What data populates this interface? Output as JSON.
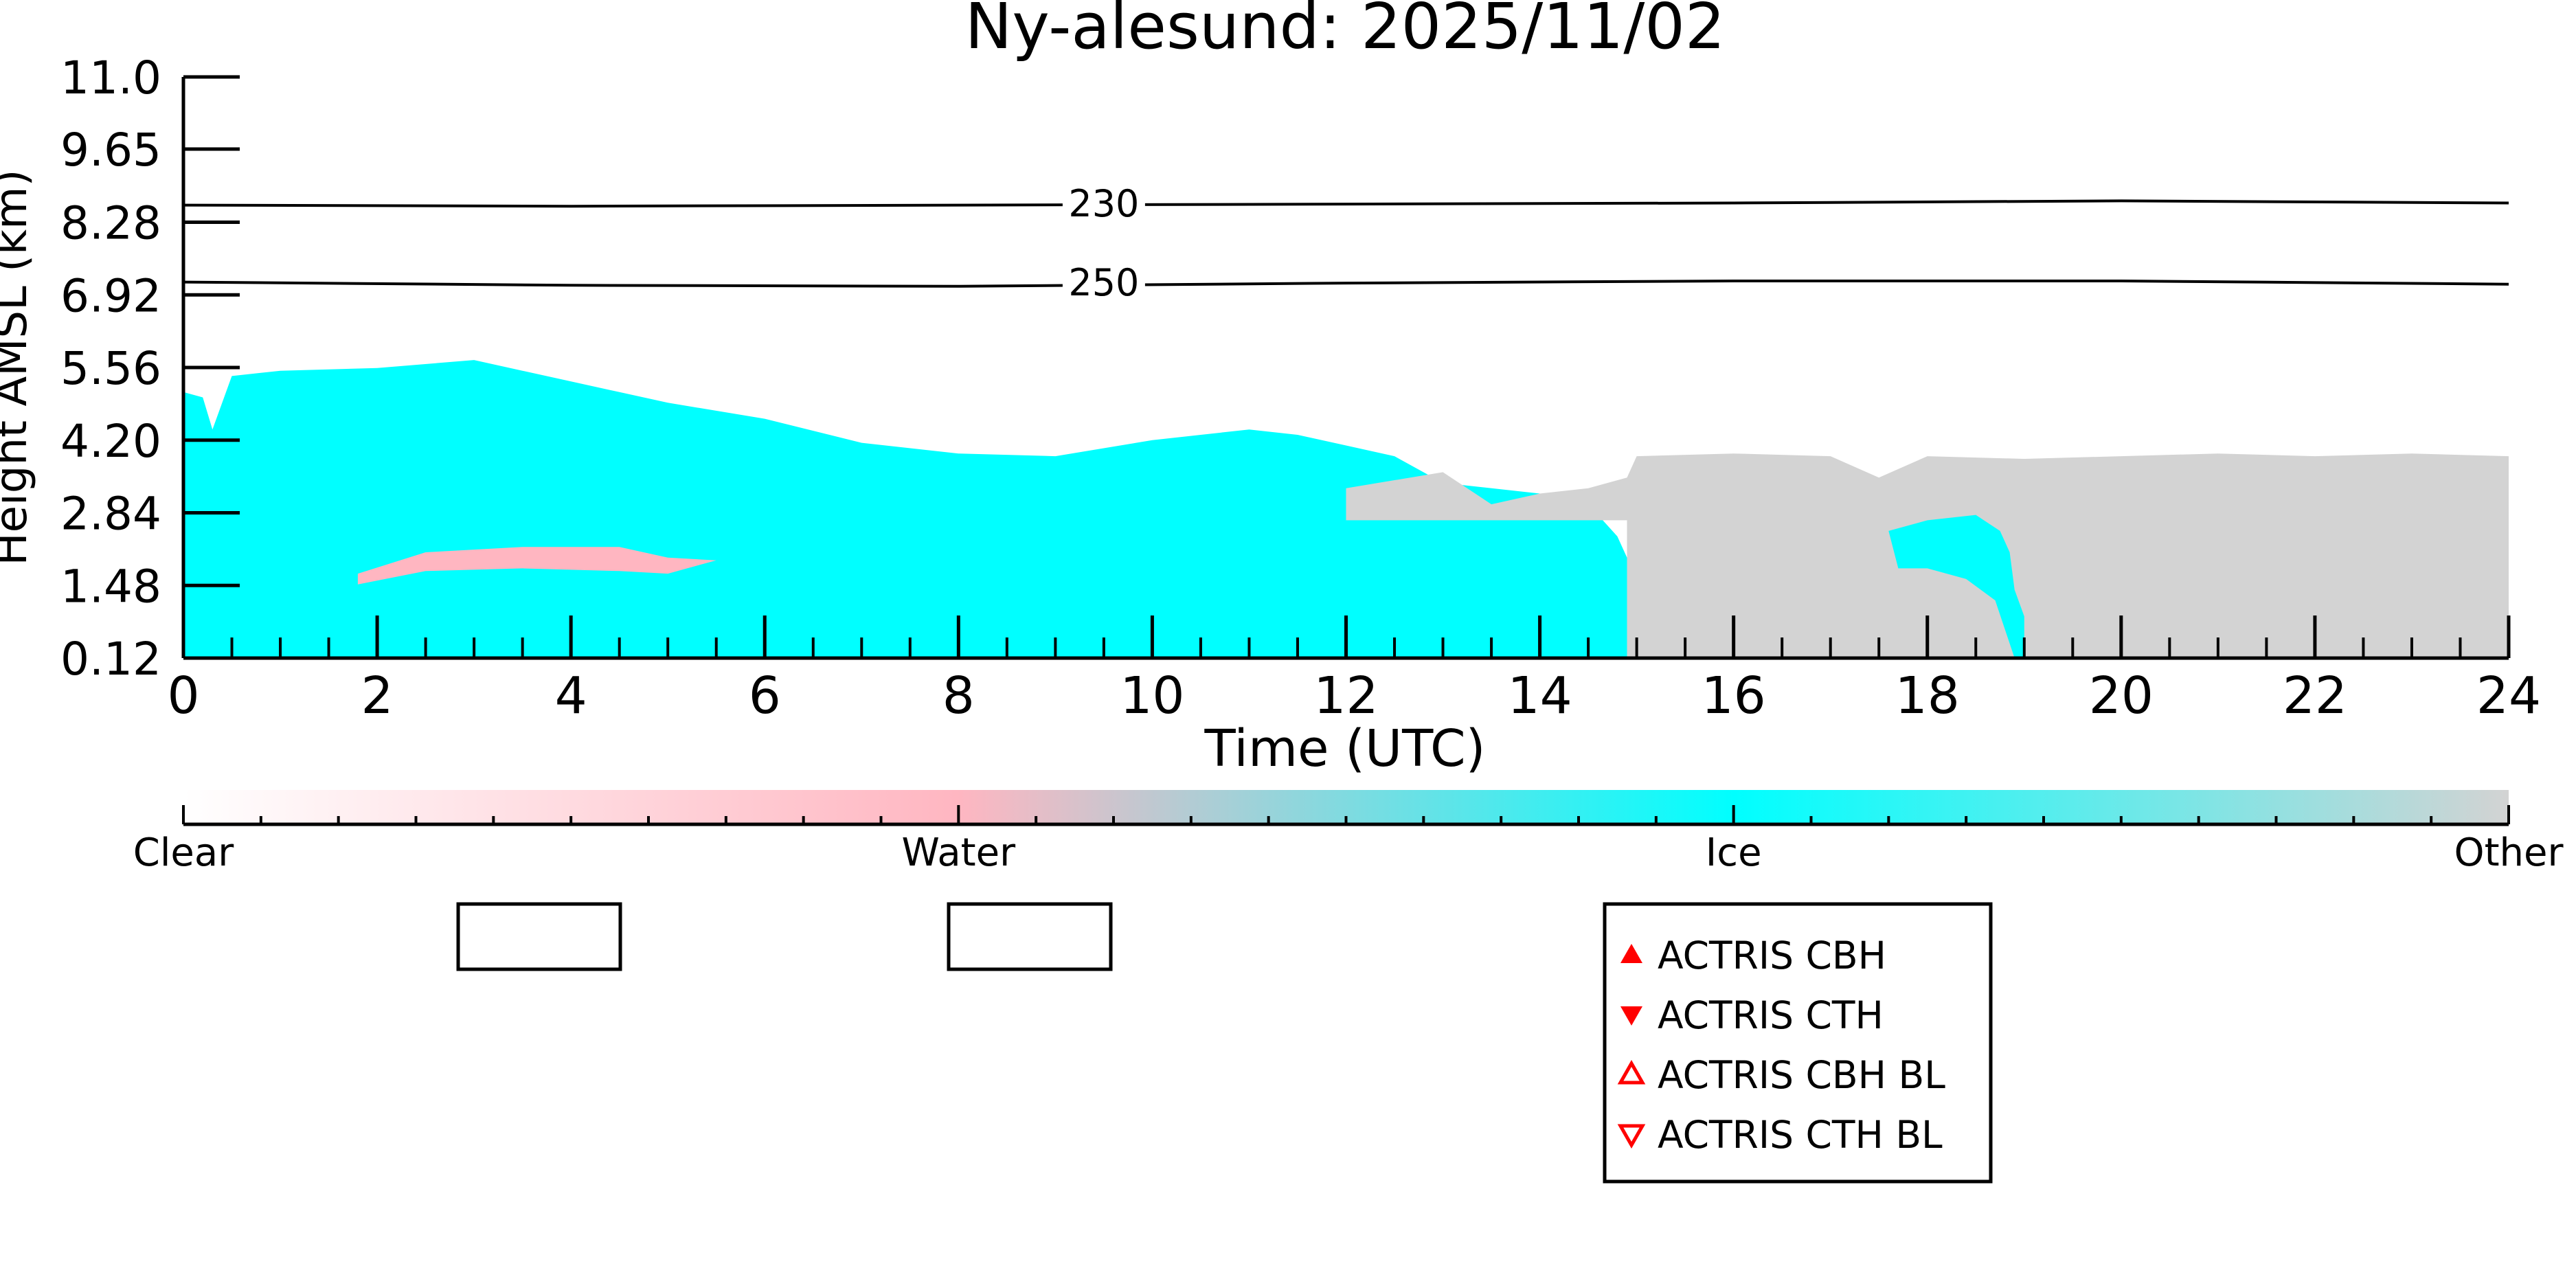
{
  "chart_data": {
    "type": "heatmap",
    "title": "Ny-alesund: 2025/11/02",
    "xlabel": "Time (UTC)",
    "ylabel": "Height AMSL (km)",
    "xlim": [
      0,
      24
    ],
    "ylim": [
      0.12,
      11.0
    ],
    "x_ticks": [
      "0",
      "2",
      "4",
      "6",
      "8",
      "10",
      "12",
      "14",
      "16",
      "18",
      "20",
      "22",
      "24"
    ],
    "y_ticks": [
      "0.12",
      "1.48",
      "2.84",
      "4.20",
      "5.56",
      "6.92",
      "8.28",
      "9.65",
      "11.0"
    ],
    "grid": false,
    "colorbar": {
      "labels": [
        "Clear",
        "Water",
        "Ice",
        "Other"
      ],
      "colors": [
        "#ffffff",
        "#ffb6c1",
        "#00ffff",
        "#d3d3d3"
      ]
    },
    "contours": [
      {
        "label": "230",
        "x": [
          0,
          4,
          8,
          12,
          16,
          20,
          24
        ],
        "y": [
          8.6,
          8.58,
          8.6,
          8.62,
          8.64,
          8.68,
          8.64
        ]
      },
      {
        "label": "250",
        "x": [
          0,
          4,
          8,
          12,
          16,
          20,
          24
        ],
        "y": [
          7.16,
          7.1,
          7.08,
          7.14,
          7.18,
          7.18,
          7.12
        ]
      }
    ],
    "regions": [
      {
        "class": "Ice",
        "color": "#00ffff",
        "x": [
          0,
          0.2,
          0.3,
          0.5,
          1.0,
          2.0,
          3.0,
          3.5,
          4.0,
          4.5,
          5.0,
          6.0,
          7.0,
          8.0,
          9.0,
          10.0,
          10.5,
          11.0,
          11.5,
          12.0,
          12.5,
          13.0,
          14.0,
          14.5,
          14.8,
          14.9,
          14.9
        ],
        "y": [
          5.1,
          5.0,
          4.4,
          5.4,
          5.5,
          5.55,
          5.7,
          5.5,
          5.3,
          5.1,
          4.9,
          4.6,
          4.15,
          3.95,
          3.9,
          4.2,
          4.3,
          4.4,
          4.3,
          4.1,
          3.9,
          3.4,
          3.2,
          3.0,
          2.4,
          2.0,
          0.12
        ]
      },
      {
        "class": "Water",
        "color": "#ffb6c1",
        "x": [
          1.8,
          2.5,
          3.5,
          4.5,
          5.0,
          5.5,
          5.0,
          4.5,
          3.5,
          2.5,
          1.8
        ],
        "y": [
          1.7,
          2.1,
          2.2,
          2.2,
          2.0,
          1.95,
          1.7,
          1.75,
          1.8,
          1.75,
          1.5
        ]
      },
      {
        "class": "Other",
        "color": "#d3d3d3",
        "x": [
          14.9,
          15.0,
          16.0,
          17.0,
          17.5,
          18.0,
          19.0,
          20.0,
          21.0,
          22.0,
          23.0,
          24.0,
          24.0
        ],
        "y": [
          3.5,
          3.9,
          3.95,
          3.9,
          3.5,
          3.9,
          3.85,
          3.9,
          3.95,
          3.9,
          3.95,
          3.9,
          0.12
        ]
      },
      {
        "class": "Other",
        "color": "#d3d3d3",
        "x": [
          12.0,
          13.0,
          13.5,
          14.0,
          14.5,
          14.9,
          14.9,
          12.0
        ],
        "y": [
          3.3,
          3.6,
          3.0,
          3.2,
          3.3,
          3.5,
          2.7,
          2.7
        ]
      },
      {
        "class": "Ice",
        "color": "#00ffff",
        "x": [
          17.6,
          18.0,
          18.5,
          18.75,
          18.85,
          18.9,
          19.0,
          19.0,
          18.9,
          18.7,
          18.4,
          18.0,
          17.7
        ],
        "y": [
          2.5,
          2.7,
          2.8,
          2.5,
          2.1,
          1.4,
          0.9,
          0.12,
          0.12,
          1.2,
          1.6,
          1.8,
          1.8
        ]
      }
    ],
    "legend": {
      "placement": "below-right",
      "entries": [
        {
          "label": "ACTRIS CBH",
          "marker": "triangle-up-filled",
          "color": "#ff0000"
        },
        {
          "label": "ACTRIS CTH",
          "marker": "triangle-down-filled",
          "color": "#ff0000"
        },
        {
          "label": "ACTRIS CBH BL",
          "marker": "triangle-up-open",
          "color": "#ff0000"
        },
        {
          "label": "ACTRIS CTH BL",
          "marker": "triangle-down-open",
          "color": "#ff0000"
        }
      ]
    },
    "empty_legend_boxes": 2
  }
}
